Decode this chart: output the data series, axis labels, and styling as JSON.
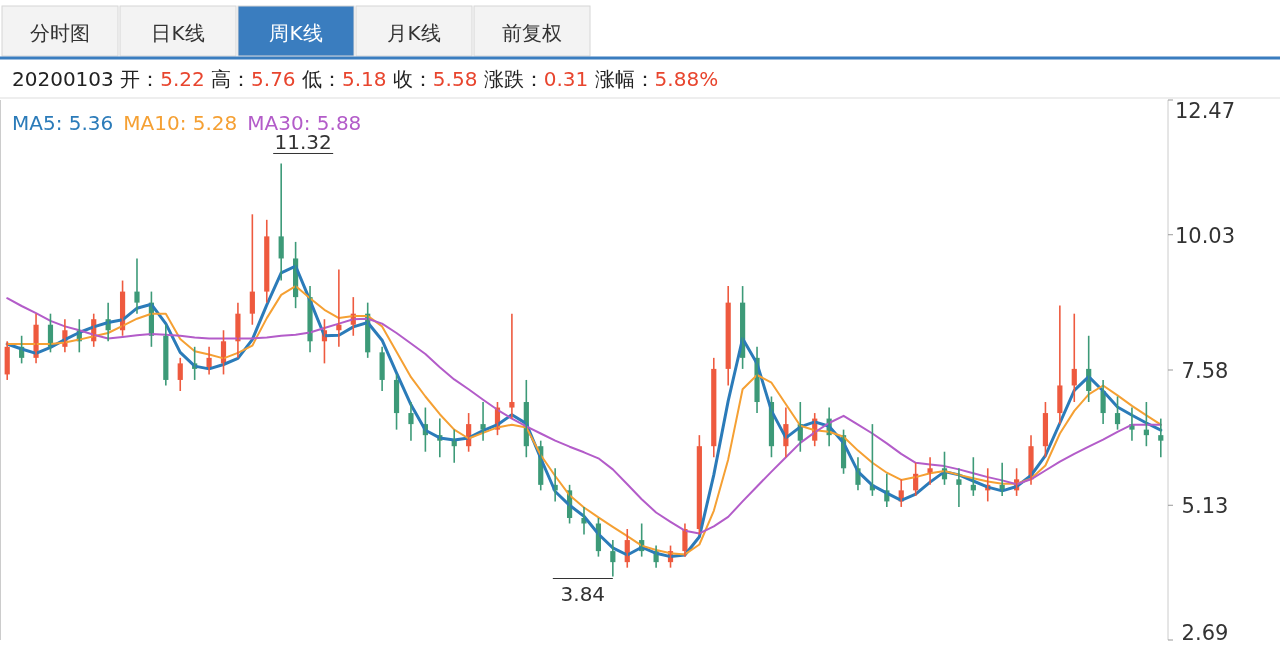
{
  "chart_data": {
    "type": "candlestick",
    "title": "20200103 开：5.22 高：5.76 低：5.18 收：5.58 涨跌：0.31 涨幅：5.88%",
    "annotations": [
      "分时图",
      "日K线",
      "周K线",
      "月K线",
      "前复权",
      "11.32",
      "3.84"
    ],
    "categories": [
      null,
      null,
      null,
      null,
      null,
      null,
      null,
      null,
      null,
      null,
      null,
      null,
      null,
      null,
      null,
      null,
      null,
      null,
      null,
      null,
      null,
      null,
      null,
      null,
      null,
      null,
      null,
      null,
      null,
      null,
      null,
      null,
      null,
      null,
      null,
      null,
      null,
      null,
      null,
      null,
      null,
      null,
      null,
      null,
      null,
      null,
      null,
      null,
      null,
      null,
      null,
      null,
      null,
      null,
      null,
      null,
      null,
      null,
      null,
      null,
      null,
      null,
      null,
      null,
      null,
      null,
      null,
      null,
      null,
      null,
      null,
      null,
      null,
      null,
      null,
      null,
      null,
      null,
      null,
      null,
      null
    ],
    "ohlc": [
      [
        7.5,
        8.1,
        7.4,
        8.0
      ],
      [
        8.0,
        8.2,
        7.7,
        7.8
      ],
      [
        7.8,
        8.6,
        7.7,
        8.4
      ],
      [
        8.4,
        8.6,
        7.9,
        8.0
      ],
      [
        8.0,
        8.5,
        7.9,
        8.3
      ],
      [
        8.3,
        8.5,
        7.9,
        8.1
      ],
      [
        8.1,
        8.6,
        8.0,
        8.5
      ],
      [
        8.5,
        8.8,
        8.1,
        8.3
      ],
      [
        8.3,
        9.2,
        8.2,
        9.0
      ],
      [
        9.0,
        9.6,
        8.6,
        8.8
      ],
      [
        8.8,
        9.0,
        8.0,
        8.2
      ],
      [
        8.2,
        8.4,
        7.3,
        7.4
      ],
      [
        7.4,
        7.8,
        7.2,
        7.7
      ],
      [
        7.7,
        8.0,
        7.4,
        7.6
      ],
      [
        7.6,
        8.0,
        7.5,
        7.8
      ],
      [
        7.7,
        8.3,
        7.5,
        8.1
      ],
      [
        8.1,
        8.8,
        7.8,
        8.6
      ],
      [
        8.6,
        10.4,
        8.4,
        9.0
      ],
      [
        9.0,
        10.3,
        8.8,
        10.0
      ],
      [
        10.0,
        11.32,
        9.2,
        9.6
      ],
      [
        9.6,
        9.9,
        8.7,
        8.9
      ],
      [
        8.9,
        9.1,
        7.9,
        8.1
      ],
      [
        8.1,
        8.5,
        7.7,
        8.3
      ],
      [
        8.3,
        9.4,
        8.0,
        8.4
      ],
      [
        8.4,
        8.9,
        8.2,
        8.6
      ],
      [
        8.6,
        8.8,
        7.8,
        7.9
      ],
      [
        7.9,
        8.0,
        7.2,
        7.4
      ],
      [
        7.4,
        7.5,
        6.5,
        6.8
      ],
      [
        6.8,
        7.0,
        6.3,
        6.6
      ],
      [
        6.6,
        6.9,
        6.1,
        6.4
      ],
      [
        6.4,
        6.7,
        6.0,
        6.3
      ],
      [
        6.3,
        6.5,
        5.9,
        6.2
      ],
      [
        6.2,
        6.8,
        6.1,
        6.6
      ],
      [
        6.6,
        7.0,
        6.3,
        6.5
      ],
      [
        6.5,
        7.0,
        6.4,
        6.9
      ],
      [
        6.9,
        8.6,
        6.7,
        7.0
      ],
      [
        7.0,
        7.4,
        6.0,
        6.2
      ],
      [
        6.2,
        6.3,
        5.4,
        5.5
      ],
      [
        5.5,
        5.8,
        5.2,
        5.4
      ],
      [
        5.4,
        5.5,
        4.8,
        4.9
      ],
      [
        4.9,
        5.1,
        4.6,
        4.8
      ],
      [
        4.8,
        4.9,
        4.2,
        4.3
      ],
      [
        4.3,
        4.5,
        3.84,
        4.1
      ],
      [
        4.1,
        4.7,
        4.0,
        4.5
      ],
      [
        4.5,
        4.8,
        4.2,
        4.3
      ],
      [
        4.3,
        4.4,
        4.0,
        4.1
      ],
      [
        4.1,
        4.4,
        4.0,
        4.3
      ],
      [
        4.3,
        4.8,
        4.2,
        4.7
      ],
      [
        4.7,
        6.4,
        4.6,
        6.2
      ],
      [
        6.2,
        7.8,
        6.0,
        7.6
      ],
      [
        7.6,
        9.1,
        7.3,
        8.8
      ],
      [
        8.8,
        9.1,
        7.6,
        7.8
      ],
      [
        7.8,
        8.0,
        6.8,
        7.0
      ],
      [
        7.0,
        7.1,
        6.0,
        6.2
      ],
      [
        6.2,
        6.9,
        6.0,
        6.6
      ],
      [
        6.6,
        7.0,
        6.1,
        6.3
      ],
      [
        6.3,
        6.8,
        6.2,
        6.7
      ],
      [
        6.7,
        6.9,
        6.2,
        6.4
      ],
      [
        6.4,
        6.5,
        5.7,
        5.8
      ],
      [
        5.8,
        6.0,
        5.4,
        5.5
      ],
      [
        5.5,
        6.6,
        5.3,
        5.4
      ],
      [
        5.4,
        5.7,
        5.1,
        5.2
      ],
      [
        5.2,
        5.6,
        5.1,
        5.4
      ],
      [
        5.4,
        5.9,
        5.3,
        5.7
      ],
      [
        5.7,
        6.0,
        5.5,
        5.8
      ],
      [
        5.8,
        6.1,
        5.5,
        5.6
      ],
      [
        5.6,
        5.8,
        5.1,
        5.5
      ],
      [
        5.5,
        6.0,
        5.3,
        5.4
      ],
      [
        5.4,
        5.8,
        5.2,
        5.5
      ],
      [
        5.5,
        5.9,
        5.3,
        5.4
      ],
      [
        5.4,
        5.8,
        5.3,
        5.6
      ],
      [
        5.6,
        6.4,
        5.5,
        6.2
      ],
      [
        6.2,
        7.0,
        6.0,
        6.8
      ],
      [
        6.8,
        8.75,
        6.6,
        7.3
      ],
      [
        7.3,
        8.6,
        7.0,
        7.6
      ],
      [
        7.6,
        8.2,
        7.0,
        7.2
      ],
      [
        7.2,
        7.4,
        6.6,
        6.8
      ],
      [
        6.8,
        7.1,
        6.5,
        6.6
      ],
      [
        6.6,
        6.9,
        6.3,
        6.5
      ],
      [
        6.5,
        7.0,
        6.2,
        6.4
      ],
      [
        6.4,
        6.7,
        6.0,
        6.3
      ]
    ],
    "series": [
      {
        "name": "MA5: 5.36",
        "type": "line",
        "color": "#2b7bb9",
        "values": [
          8.05,
          7.96,
          7.88,
          7.99,
          8.13,
          8.26,
          8.36,
          8.44,
          8.49,
          8.7,
          8.77,
          8.42,
          7.9,
          7.65,
          7.6,
          7.68,
          7.79,
          8.13,
          8.76,
          9.34,
          9.46,
          8.84,
          8.2,
          8.21,
          8.36,
          8.44,
          8.12,
          7.53,
          6.95,
          6.49,
          6.35,
          6.31,
          6.35,
          6.48,
          6.59,
          6.77,
          6.61,
          5.98,
          5.38,
          5.13,
          4.93,
          4.61,
          4.36,
          4.23,
          4.37,
          4.26,
          4.2,
          4.23,
          4.56,
          5.68,
          7.02,
          8.15,
          7.7,
          6.84,
          6.35,
          6.55,
          6.64,
          6.56,
          6.26,
          5.74,
          5.49,
          5.35,
          5.22,
          5.33,
          5.55,
          5.74,
          5.68,
          5.57,
          5.46,
          5.39,
          5.47,
          5.67,
          6.03,
          6.62,
          7.21,
          7.46,
          7.2,
          6.91,
          6.76,
          6.62,
          6.49
        ]
      },
      {
        "name": "MA10: 5.28",
        "type": "line",
        "color": "#f5a033",
        "values": [
          8.05,
          8.05,
          8.05,
          8.05,
          8.08,
          8.13,
          8.19,
          8.25,
          8.38,
          8.51,
          8.6,
          8.6,
          8.14,
          7.92,
          7.86,
          7.79,
          7.89,
          8.02,
          8.52,
          8.94,
          9.1,
          8.88,
          8.67,
          8.52,
          8.56,
          8.56,
          8.37,
          7.91,
          7.45,
          7.1,
          6.78,
          6.5,
          6.34,
          6.44,
          6.54,
          6.59,
          6.54,
          6.04,
          5.66,
          5.31,
          5.09,
          4.91,
          4.74,
          4.57,
          4.4,
          4.32,
          4.26,
          4.24,
          4.42,
          5.03,
          5.96,
          7.23,
          7.49,
          7.35,
          6.96,
          6.57,
          6.49,
          6.46,
          6.37,
          6.12,
          5.9,
          5.72,
          5.59,
          5.64,
          5.71,
          5.75,
          5.68,
          5.62,
          5.56,
          5.52,
          5.52,
          5.61,
          5.85,
          6.43,
          6.84,
          7.14,
          7.3,
          7.12,
          6.93,
          6.76,
          6.59
        ]
      },
      {
        "name": "MA30: 5.88",
        "type": "line",
        "color": "#b35cc9",
        "values": [
          8.88,
          8.74,
          8.61,
          8.47,
          8.37,
          8.3,
          8.22,
          8.15,
          8.18,
          8.21,
          8.23,
          8.22,
          8.2,
          8.17,
          8.15,
          8.15,
          8.15,
          8.15,
          8.17,
          8.2,
          8.22,
          8.26,
          8.34,
          8.42,
          8.5,
          8.51,
          8.42,
          8.25,
          8.06,
          7.87,
          7.63,
          7.41,
          7.23,
          7.04,
          6.86,
          6.7,
          6.56,
          6.43,
          6.3,
          6.19,
          6.09,
          5.98,
          5.78,
          5.51,
          5.24,
          5.0,
          4.83,
          4.67,
          4.62,
          4.75,
          4.92,
          5.2,
          5.47,
          5.74,
          6.0,
          6.26,
          6.45,
          6.62,
          6.75,
          6.59,
          6.43,
          6.25,
          6.06,
          5.9,
          5.87,
          5.84,
          5.78,
          5.71,
          5.64,
          5.58,
          5.51,
          5.6,
          5.76,
          5.92,
          6.06,
          6.19,
          6.32,
          6.46,
          6.59,
          6.59,
          6.59
        ]
      }
    ],
    "ylim": [
      2.69,
      12.47
    ],
    "yticks": [
      2.69,
      5.13,
      7.58,
      10.03,
      12.47
    ],
    "tick_labels": "y",
    "legend": "top left"
  }
}
